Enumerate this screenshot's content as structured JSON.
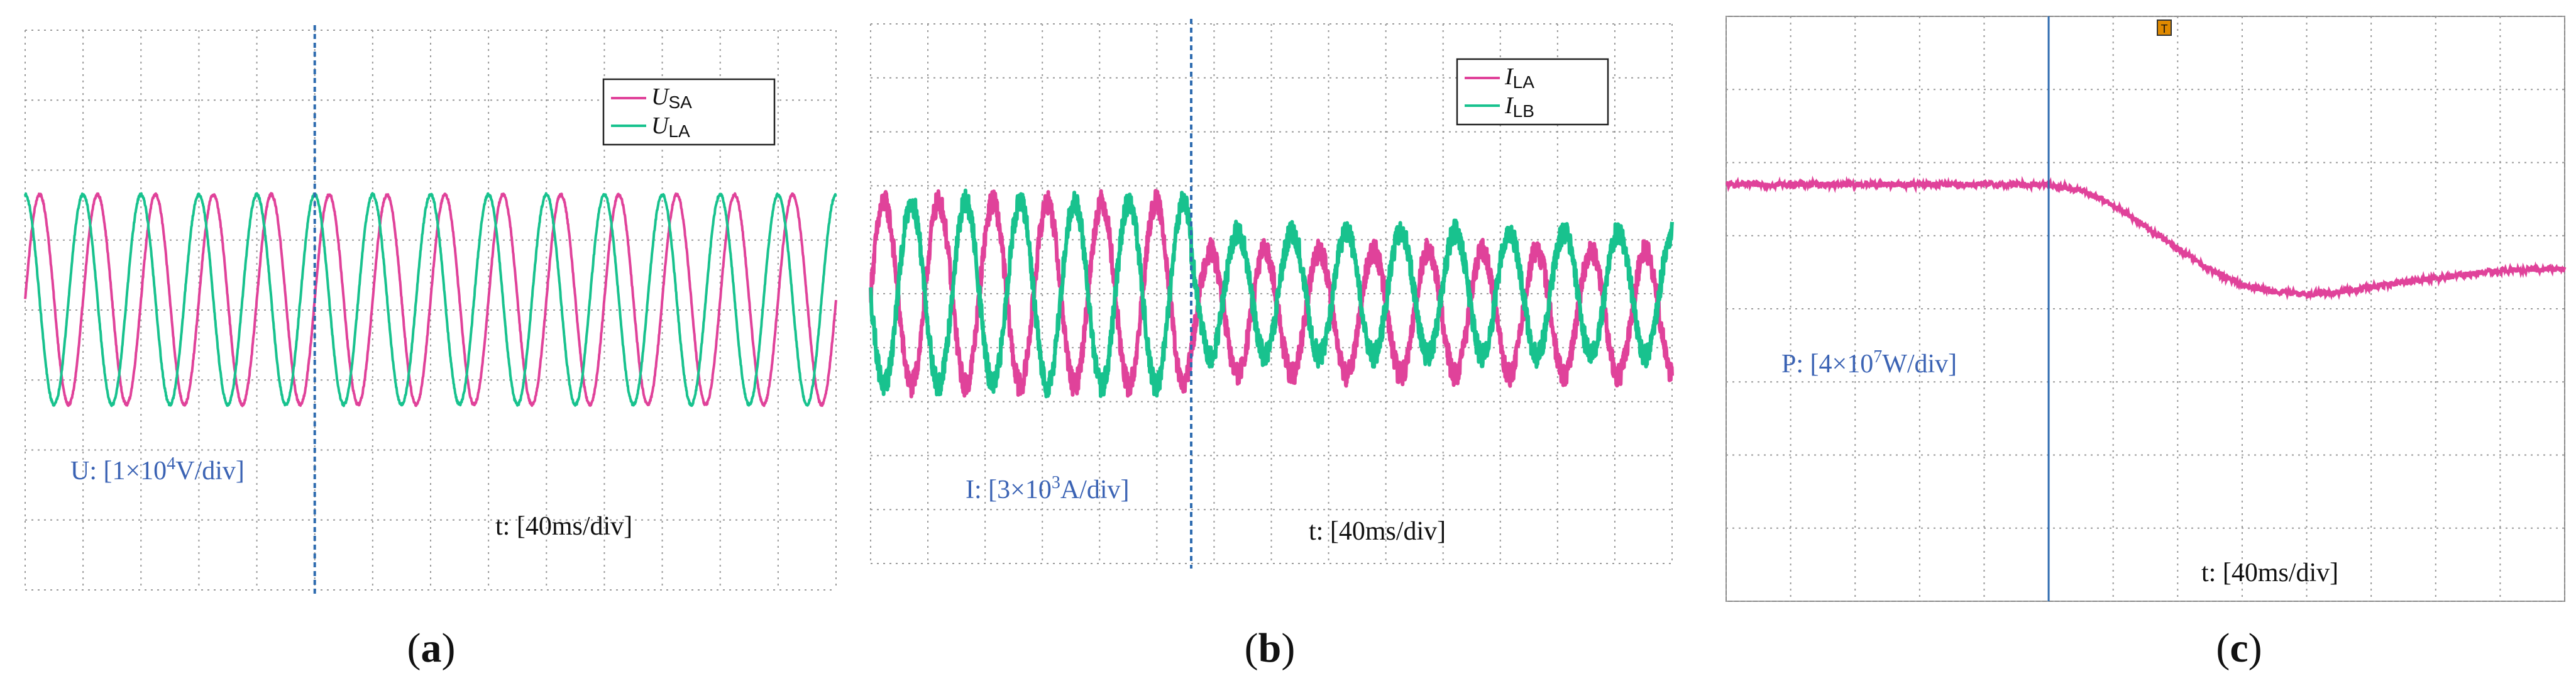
{
  "colors": {
    "magenta": "#e0429a",
    "green": "#18c28e",
    "annotation_blue": "#3b63b4",
    "cursor_blue": "#2f6cb0",
    "grid": "#9a9a9a",
    "frame": "#8a8a8a",
    "trigger_marker": "#e08a00"
  },
  "panels": [
    {
      "id": "a",
      "caption": {
        "open": "(",
        "letter": "a",
        "close": ")"
      },
      "legend": [
        {
          "symbol": "U",
          "subscript": "SA",
          "color": "magenta"
        },
        {
          "symbol": "U",
          "subscript": "LA",
          "color": "green"
        }
      ],
      "scale_label": {
        "prefix": "U: [1×10",
        "exp": "4",
        "suffix": "V/div]"
      },
      "time_label": "t: [40ms/div]"
    },
    {
      "id": "b",
      "caption": {
        "open": "(",
        "letter": "b",
        "close": ")"
      },
      "legend": [
        {
          "symbol": "I",
          "subscript": "LA",
          "color": "magenta"
        },
        {
          "symbol": "I",
          "subscript": "LB",
          "color": "green"
        }
      ],
      "scale_label": {
        "prefix": "I: [3×10",
        "exp": "3",
        "suffix": "A/div]"
      },
      "time_label": "t: [40ms/div]"
    },
    {
      "id": "c",
      "caption": {
        "open": "(",
        "letter": "c",
        "close": ")"
      },
      "legend": [],
      "scale_label": {
        "prefix": "P: [4×10",
        "exp": "7",
        "suffix": "W/div]"
      },
      "time_label": "t: [40ms/div]"
    }
  ],
  "chart_data": [
    {
      "type": "line",
      "panel": "a",
      "xlabel": "t",
      "x_div": "40ms/div",
      "x_divisions": 14,
      "xlim": [
        0,
        14
      ],
      "ylabel": "U",
      "y_div": "1×10^4 V/div",
      "y_divisions": 8,
      "ylim": [
        -4,
        4
      ],
      "grid": true,
      "cursor_x": 5,
      "series": [
        {
          "name": "U_SA",
          "color": "magenta",
          "kind": "sine",
          "segments": [
            {
              "x": [
                0,
                14
              ],
              "amplitude": 1.5,
              "offset": 0.15,
              "period": 1.0,
              "phase": 0.0,
              "noise": 0.02
            }
          ]
        },
        {
          "name": "U_LA",
          "color": "green",
          "kind": "sine",
          "segments": [
            {
              "x": [
                0,
                14
              ],
              "amplitude": 1.5,
              "offset": 0.15,
              "period": 1.0,
              "phase": 0.25,
              "noise": 0.02
            }
          ]
        }
      ]
    },
    {
      "type": "line",
      "panel": "b",
      "xlabel": "t",
      "x_div": "40ms/div",
      "x_divisions": 14,
      "xlim": [
        0,
        14
      ],
      "ylabel": "I",
      "y_div": "3×10^3 A/div",
      "y_divisions": 10,
      "ylim": [
        -5,
        5
      ],
      "grid": true,
      "cursor_x": 5.6,
      "series": [
        {
          "name": "I_LA",
          "color": "magenta",
          "kind": "sine",
          "segments": [
            {
              "x": [
                0,
                5.6
              ],
              "amplitude": 1.7,
              "offset": 0.0,
              "period": 0.95,
              "phase": 0.0,
              "noise": 0.22
            },
            {
              "x": [
                5.6,
                14
              ],
              "amplitude": 1.15,
              "offset": -0.35,
              "period": 0.95,
              "phase": 0.0,
              "noise": 0.22
            }
          ]
        },
        {
          "name": "I_LB",
          "color": "green",
          "kind": "sine",
          "segments": [
            {
              "x": [
                0,
                5.6
              ],
              "amplitude": 1.7,
              "offset": 0.0,
              "period": 0.95,
              "phase": 0.5,
              "noise": 0.22
            },
            {
              "x": [
                5.6,
                14
              ],
              "amplitude": 1.15,
              "offset": 0.0,
              "period": 0.95,
              "phase": 0.5,
              "noise": 0.22
            }
          ]
        }
      ]
    },
    {
      "type": "line",
      "panel": "c",
      "xlabel": "t",
      "x_div": "40ms/div",
      "x_divisions": 13,
      "xlim": [
        0,
        13
      ],
      "ylabel": "P",
      "y_div": "4×10^7 W/div",
      "y_divisions": 8,
      "ylim": [
        -4,
        4
      ],
      "grid": true,
      "cursor_x": 5,
      "series": [
        {
          "name": "P",
          "color": "magenta",
          "kind": "points",
          "x": [
            0,
            1,
            2,
            3,
            4,
            5,
            5.5,
            6,
            6.5,
            7,
            7.5,
            8,
            8.5,
            9,
            9.5,
            10,
            11,
            12,
            13
          ],
          "y": [
            1.7,
            1.7,
            1.7,
            1.7,
            1.7,
            1.7,
            1.62,
            1.42,
            1.13,
            0.82,
            0.53,
            0.33,
            0.23,
            0.2,
            0.23,
            0.3,
            0.42,
            0.52,
            0.55
          ],
          "noise": 0.04
        }
      ]
    }
  ]
}
